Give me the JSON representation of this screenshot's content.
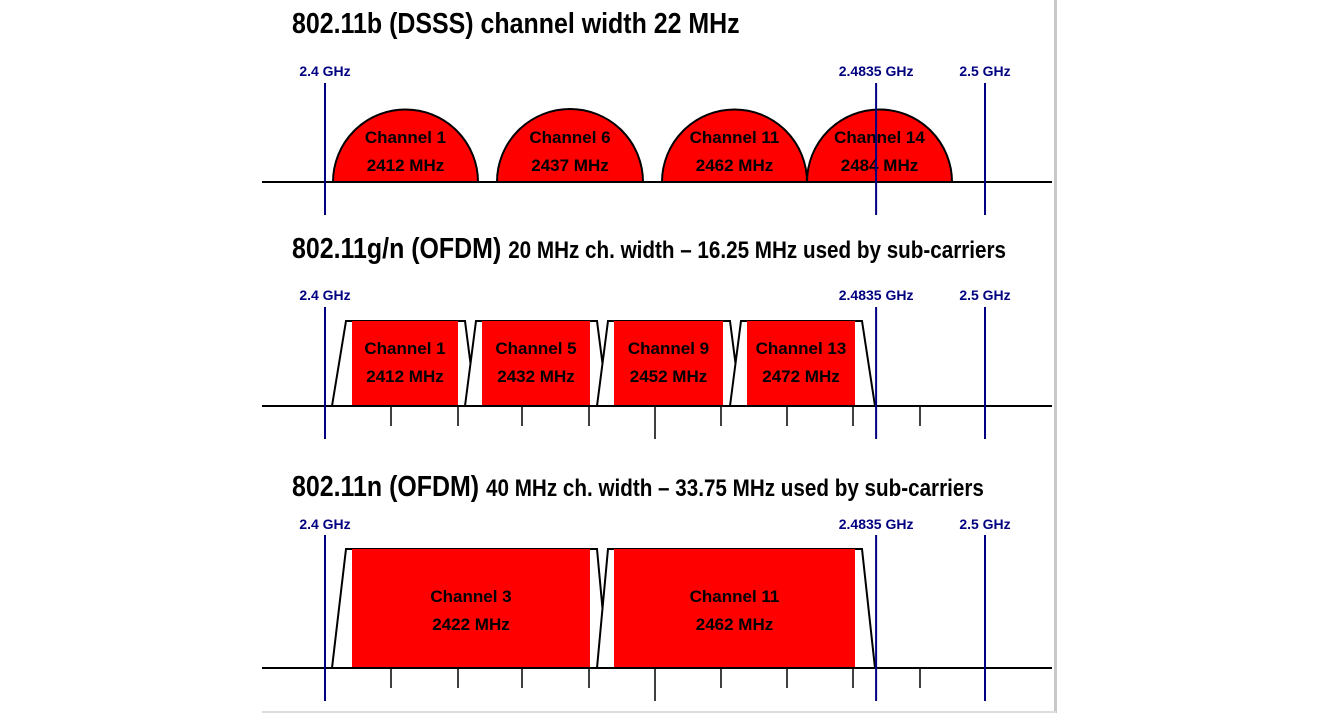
{
  "sections": [
    {
      "id": "dsss",
      "title_main": "802.11b (DSSS) channel width 22 MHz",
      "title_sub": "",
      "markers": [
        {
          "label": "2.4 GHz",
          "freq": 2400
        },
        {
          "label": "2.4835 GHz",
          "freq": 2483.5
        },
        {
          "label": "2.5 GHz",
          "freq": 2500
        }
      ],
      "channels": [
        {
          "name": "Channel 1",
          "freq": "2412 MHz"
        },
        {
          "name": "Channel 6",
          "freq": "2437 MHz"
        },
        {
          "name": "Channel 11",
          "freq": "2462 MHz"
        },
        {
          "name": "Channel 14",
          "freq": "2484 MHz"
        }
      ]
    },
    {
      "id": "ofdm20",
      "title_main": "802.11g/n (OFDM)",
      "title_sub": "20 MHz ch. width – 16.25 MHz used by sub-carriers",
      "markers": [
        {
          "label": "2.4 GHz",
          "freq": 2400
        },
        {
          "label": "2.4835 GHz",
          "freq": 2483.5
        },
        {
          "label": "2.5 GHz",
          "freq": 2500
        }
      ],
      "channels": [
        {
          "name": "Channel 1",
          "freq": "2412 MHz"
        },
        {
          "name": "Channel 5",
          "freq": "2432 MHz"
        },
        {
          "name": "Channel 9",
          "freq": "2452 MHz"
        },
        {
          "name": "Channel 13",
          "freq": "2472 MHz"
        }
      ]
    },
    {
      "id": "ofdm40",
      "title_main": "802.11n (OFDM)",
      "title_sub": "40 MHz ch. width – 33.75 MHz used by sub-carriers",
      "markers": [
        {
          "label": "2.4 GHz",
          "freq": 2400
        },
        {
          "label": "2.4835 GHz",
          "freq": 2483.5
        },
        {
          "label": "2.5 GHz",
          "freq": 2500
        }
      ],
      "channels": [
        {
          "name": "Channel 3",
          "freq": "2422 MHz"
        },
        {
          "name": "Channel 11",
          "freq": "2462 MHz"
        }
      ]
    }
  ],
  "colors": {
    "channel_fill": "#ff0000",
    "marker_line": "#000080",
    "marker_text": "#000080",
    "axis": "#000000"
  }
}
